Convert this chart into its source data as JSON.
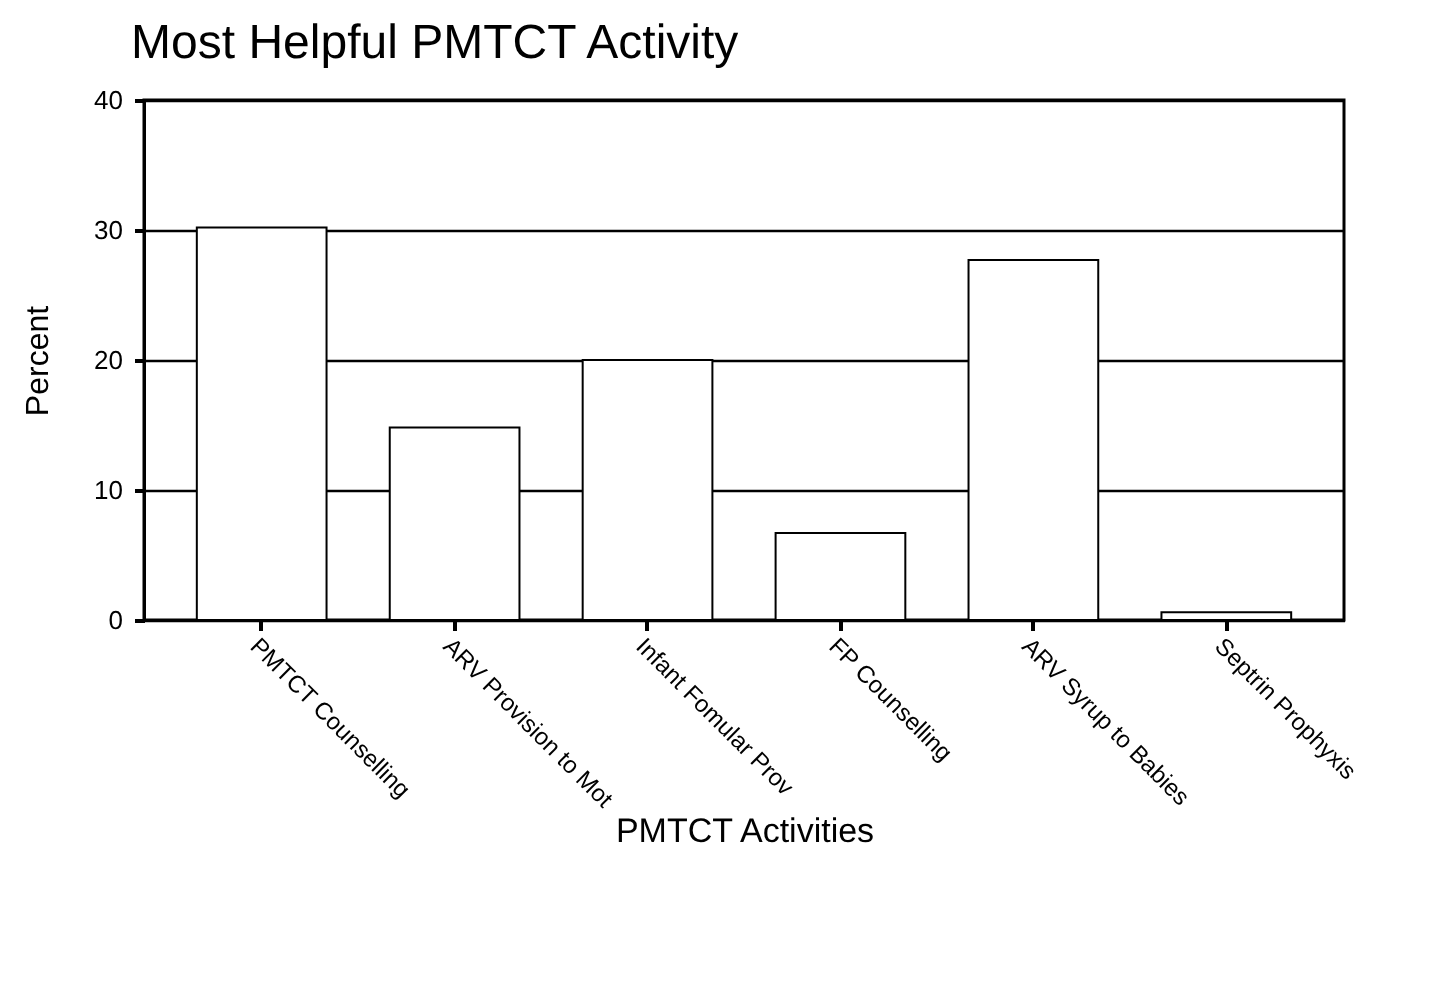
{
  "chart_data": {
    "type": "bar",
    "title": "Most Helpful PMTCT Activity",
    "xlabel": "PMTCT Activities",
    "ylabel": "Percent",
    "categories": [
      "PMTCT Counselling",
      "ARV Provision to Mot",
      "Infant Fomular Prov",
      "FP Counselling",
      "ARV Syrup to Babies",
      "Septrin Prophyxis"
    ],
    "values": [
      30.2,
      14.8,
      20.0,
      6.7,
      27.7,
      0.6
    ],
    "color": "#ffffff",
    "ylim": [
      0,
      40
    ],
    "yticks": [
      0,
      10,
      20,
      30,
      40
    ],
    "grid": "y"
  }
}
